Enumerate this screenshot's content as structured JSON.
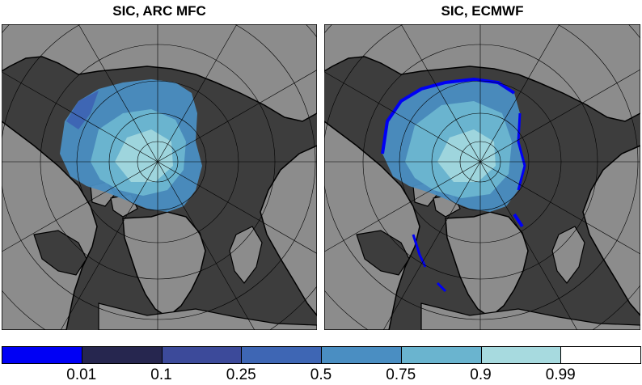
{
  "panels": [
    {
      "title": "SIC, ARC MFC"
    },
    {
      "title": "SIC, ECMWF"
    }
  ],
  "colorbar": {
    "colors": [
      "#0000f5",
      "#26264f",
      "#3c4a9a",
      "#3e66b4",
      "#4a8ec2",
      "#6ab4cf",
      "#a7dadf",
      "#ffffff"
    ],
    "labels": [
      "0.01",
      "0.1",
      "0.25",
      "0.5",
      "0.75",
      "0.9",
      "0.99"
    ]
  },
  "map_colors": {
    "ocean": "#3d3d3d",
    "land": "#8c8c8c",
    "coast": "#000000",
    "grid": "#000000"
  }
}
